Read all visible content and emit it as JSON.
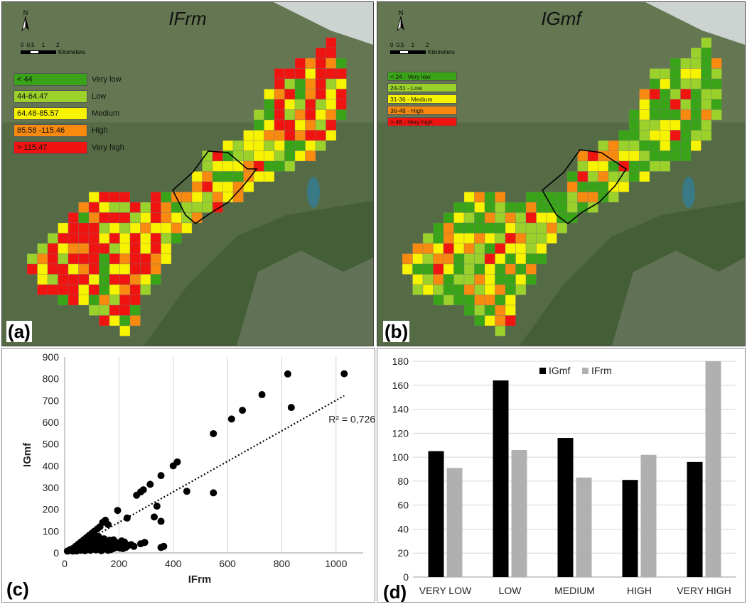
{
  "colors": {
    "very_low": "#3aa418",
    "low": "#9ad12a",
    "medium": "#f8f400",
    "high": "#f88a10",
    "very_high": "#f01410",
    "terrain": "#556b45",
    "forest": "#3f5a34",
    "snow": "#dfe3e6",
    "rock": "#9a9890",
    "lake": "#3a7a86",
    "black": "#000000",
    "grey_bar": "#b0b0b0"
  },
  "icons": {
    "north_arrow": "north-arrow-icon"
  },
  "map_a": {
    "title": "IFrm",
    "letter": "(a)",
    "north_label": "N",
    "scale_numbers": [
      "0",
      "0,5",
      "1",
      "2"
    ],
    "scale_unit": "Kilometers",
    "legend": [
      {
        "range": "< 44",
        "desc": "Very low",
        "class": "very_low"
      },
      {
        "range": "44-64.47",
        "desc": "Low",
        "class": "low"
      },
      {
        "range": "64.48-85.57",
        "desc": "Medium",
        "class": "medium"
      },
      {
        "range": "85.58 -115.46",
        "desc": "High",
        "class": "high"
      },
      {
        "range": "> 115.47",
        "desc": "Very high",
        "class": "very_high"
      }
    ]
  },
  "map_b": {
    "title": "IGmf",
    "letter": "(b)",
    "north_label": "N",
    "scale_numbers": [
      "0",
      "0,5",
      "1",
      "2"
    ],
    "scale_unit": "Kilometers",
    "legend": [
      {
        "label": "< 24 -  Very low",
        "class": "very_low"
      },
      {
        "label": "24-31 - Low",
        "class": "low"
      },
      {
        "label": "31-36 - Medium",
        "class": "medium"
      },
      {
        "label": "36-48 - High",
        "class": "high"
      },
      {
        "label": "> 48 - Very high",
        "class": "very_high"
      }
    ]
  },
  "chart_data": [
    {
      "panel": "(c)",
      "type": "scatter",
      "xlabel": "IFrm",
      "ylabel": "IGmf",
      "xlim": [
        0,
        1100
      ],
      "ylim": [
        0,
        900
      ],
      "xticks": [
        0,
        200,
        400,
        600,
        800,
        1000
      ],
      "yticks": [
        0,
        100,
        200,
        300,
        400,
        500,
        600,
        700,
        800,
        900
      ],
      "grid": "vertical",
      "annotation": "R² = 0,7267",
      "trendline": {
        "type": "linear",
        "x": [
          0,
          1030
        ],
        "y": [
          0,
          722
        ]
      },
      "points": [
        [
          1030,
          823
        ],
        [
          822,
          822
        ],
        [
          835,
          668
        ],
        [
          727,
          727
        ],
        [
          655,
          655
        ],
        [
          615,
          615
        ],
        [
          548,
          548
        ],
        [
          548,
          276
        ],
        [
          415,
          418
        ],
        [
          400,
          400
        ],
        [
          355,
          355
        ],
        [
          340,
          215
        ],
        [
          355,
          145
        ],
        [
          315,
          315
        ],
        [
          290,
          290
        ],
        [
          280,
          280
        ],
        [
          265,
          265
        ],
        [
          450,
          283
        ],
        [
          230,
          160
        ],
        [
          195,
          195
        ],
        [
          330,
          165
        ],
        [
          365,
          30
        ],
        [
          355,
          25
        ],
        [
          295,
          48
        ],
        [
          280,
          42
        ],
        [
          245,
          38
        ],
        [
          230,
          30
        ],
        [
          210,
          55
        ],
        [
          190,
          48
        ],
        [
          180,
          60
        ],
        [
          160,
          130
        ],
        [
          150,
          150
        ],
        [
          140,
          140
        ],
        [
          130,
          120
        ],
        [
          120,
          110
        ],
        [
          110,
          100
        ],
        [
          100,
          90
        ],
        [
          90,
          80
        ],
        [
          80,
          70
        ],
        [
          70,
          60
        ],
        [
          60,
          50
        ],
        [
          50,
          40
        ],
        [
          40,
          30
        ],
        [
          30,
          20
        ],
        [
          20,
          15
        ],
        [
          15,
          10
        ],
        [
          10,
          8
        ],
        [
          25,
          12
        ],
        [
          35,
          18
        ],
        [
          45,
          22
        ],
        [
          55,
          28
        ],
        [
          65,
          35
        ],
        [
          75,
          38
        ],
        [
          85,
          42
        ],
        [
          95,
          45
        ],
        [
          105,
          48
        ],
        [
          115,
          50
        ],
        [
          125,
          52
        ],
        [
          135,
          55
        ],
        [
          145,
          50
        ],
        [
          155,
          45
        ],
        [
          165,
          40
        ],
        [
          175,
          35
        ],
        [
          185,
          30
        ],
        [
          195,
          25
        ],
        [
          205,
          22
        ],
        [
          215,
          20
        ],
        [
          225,
          25
        ],
        [
          235,
          35
        ],
        [
          60,
          20
        ],
        [
          80,
          25
        ],
        [
          100,
          30
        ],
        [
          120,
          35
        ],
        [
          140,
          30
        ],
        [
          160,
          25
        ],
        [
          180,
          20
        ],
        [
          50,
          15
        ],
        [
          70,
          18
        ],
        [
          90,
          20
        ],
        [
          110,
          22
        ],
        [
          130,
          25
        ],
        [
          150,
          20
        ],
        [
          170,
          15
        ],
        [
          40,
          10
        ],
        [
          60,
          12
        ],
        [
          80,
          15
        ],
        [
          100,
          18
        ],
        [
          120,
          20
        ],
        [
          140,
          15
        ],
        [
          160,
          12
        ],
        [
          30,
          8
        ],
        [
          45,
          9
        ],
        [
          75,
          10
        ],
        [
          95,
          12
        ],
        [
          115,
          14
        ],
        [
          135,
          10
        ],
        [
          200,
          42
        ],
        [
          220,
          50
        ],
        [
          255,
          30
        ],
        [
          165,
          58
        ],
        [
          145,
          65
        ],
        [
          125,
          75
        ],
        [
          105,
          70
        ],
        [
          90,
          60
        ],
        [
          75,
          55
        ],
        [
          65,
          45
        ]
      ]
    },
    {
      "panel": "(d)",
      "type": "bar",
      "categories": [
        "VERY LOW",
        "LOW",
        "MEDIUM",
        "HIGH",
        "VERY HIGH"
      ],
      "series": [
        {
          "name": "IGmf",
          "values": [
            105,
            164,
            116,
            81,
            96
          ],
          "color": "#000000"
        },
        {
          "name": "IFrm",
          "values": [
            91,
            106,
            83,
            102,
            180
          ],
          "color": "#b0b0b0"
        }
      ],
      "ylim": [
        0,
        180
      ],
      "yticks": [
        0,
        20,
        40,
        60,
        80,
        100,
        120,
        140,
        160,
        180
      ],
      "grid": "horizontal",
      "legend": "top-center"
    }
  ]
}
